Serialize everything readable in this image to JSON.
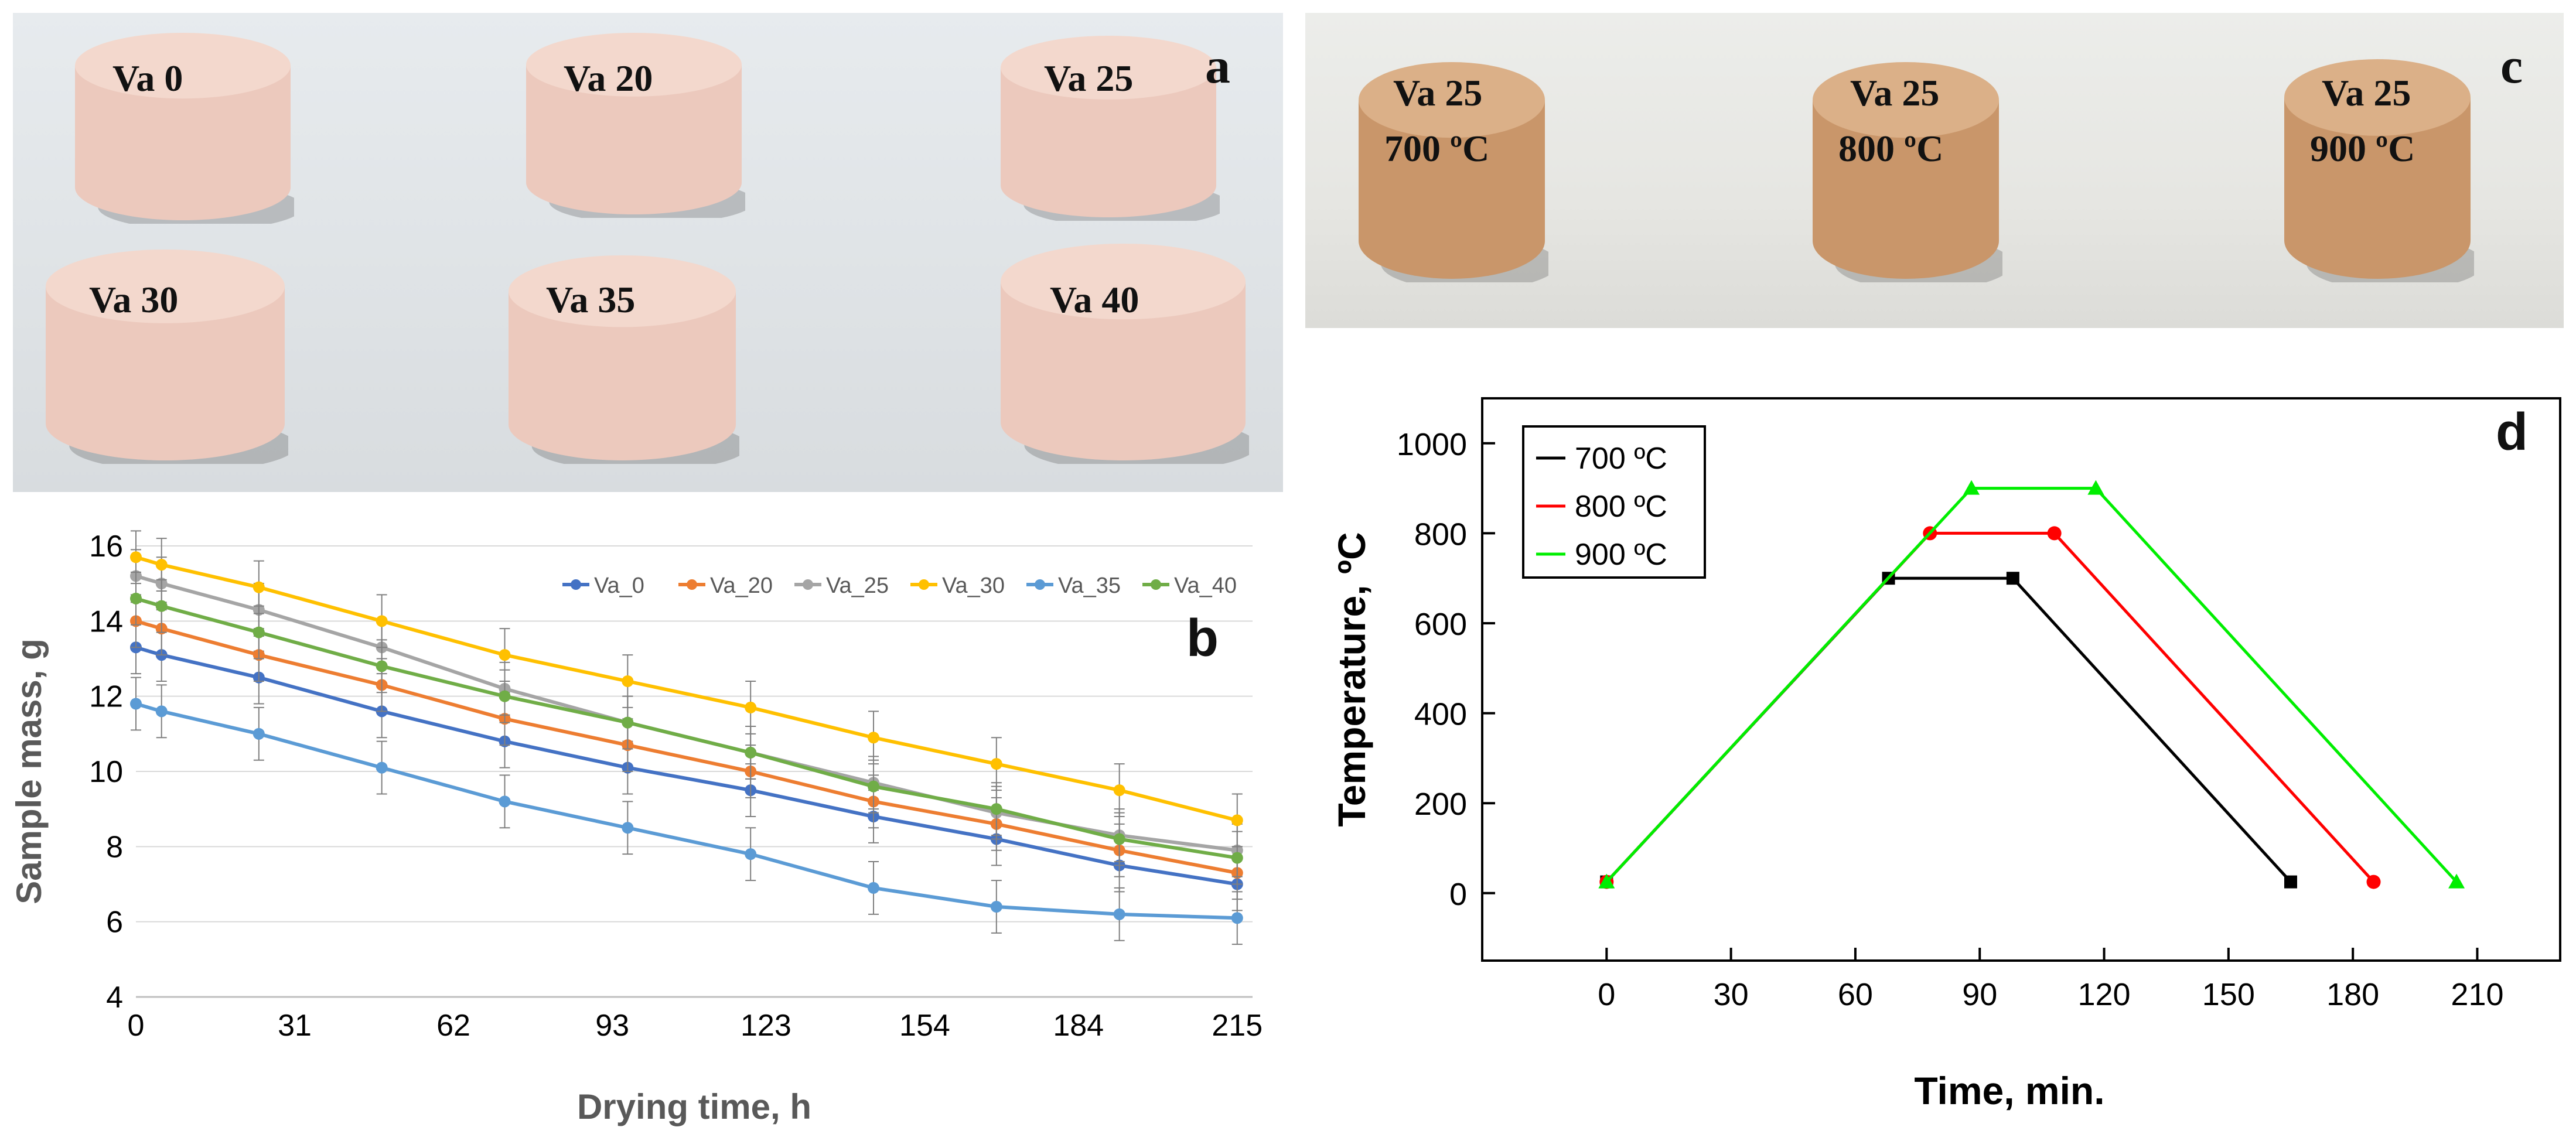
{
  "panel_letters": {
    "a": "a",
    "b": "b",
    "c": "c",
    "d": "d"
  },
  "photo_a": {
    "labels": [
      "Va 0",
      "Va 20",
      "Va 25",
      "Va 30",
      "Va 35",
      "Va 40"
    ],
    "colors": {
      "pellet": "#ecc9bd",
      "pellet_top": "#f3d8cd",
      "background": "#e2e6e9"
    }
  },
  "photo_c": {
    "labels": [
      {
        "line1": "Va 25",
        "line2": "700 ºC"
      },
      {
        "line1": "Va 25",
        "line2": "800 ºC"
      },
      {
        "line1": "Va  25",
        "line2": "900  ºC"
      }
    ],
    "colors": {
      "pellet": "#c9966a",
      "pellet_top": "#dbb088",
      "background": "#e8e8e4"
    }
  },
  "chart_data": [
    {
      "type": "line",
      "panel": "b",
      "title": "",
      "xlabel": "Drying time, h",
      "ylabel": "Sample mass, g",
      "xticks": [
        0,
        31,
        62,
        93,
        123,
        154,
        184,
        215
      ],
      "yticks": [
        4,
        6,
        8,
        10,
        12,
        14,
        16
      ],
      "xlim": [
        0,
        218
      ],
      "ylim": [
        4,
        16
      ],
      "grid": "horizontal",
      "legend_position": "top-right",
      "x": [
        0,
        5,
        24,
        48,
        72,
        96,
        120,
        144,
        168,
        192,
        215
      ],
      "series": [
        {
          "name": "Va_0",
          "color": "#4472c4",
          "values": [
            13.3,
            13.1,
            12.5,
            11.6,
            10.8,
            10.1,
            9.5,
            8.8,
            8.2,
            7.5,
            7.0
          ]
        },
        {
          "name": "Va_20",
          "color": "#ed7d31",
          "values": [
            14.0,
            13.8,
            13.1,
            12.3,
            11.4,
            10.7,
            10.0,
            9.2,
            8.6,
            7.9,
            7.3
          ]
        },
        {
          "name": "Va_25",
          "color": "#a5a5a5",
          "values": [
            15.2,
            15.0,
            14.3,
            13.3,
            12.2,
            11.3,
            10.5,
            9.7,
            8.9,
            8.3,
            7.9
          ]
        },
        {
          "name": "Va_30",
          "color": "#ffc000",
          "values": [
            15.7,
            15.5,
            14.9,
            14.0,
            13.1,
            12.4,
            11.7,
            10.9,
            10.2,
            9.5,
            8.7
          ]
        },
        {
          "name": "Va_35",
          "color": "#5b9bd5",
          "values": [
            11.8,
            11.6,
            11.0,
            10.1,
            9.2,
            8.5,
            7.8,
            6.9,
            6.4,
            6.2,
            6.1
          ]
        },
        {
          "name": "Va_40",
          "color": "#70ad47",
          "values": [
            14.6,
            14.4,
            13.7,
            12.8,
            12.0,
            11.3,
            10.5,
            9.6,
            9.0,
            8.2,
            7.7
          ]
        }
      ],
      "error_bar": 0.7
    },
    {
      "type": "line",
      "panel": "d",
      "title": "",
      "xlabel": "Time, min.",
      "ylabel": "Temperature, ºC",
      "xticks": [
        0,
        30,
        60,
        90,
        120,
        150,
        180,
        210
      ],
      "yticks": [
        0,
        200,
        400,
        600,
        800,
        1000
      ],
      "xlim": [
        -30,
        230
      ],
      "ylim": [
        -150,
        1100
      ],
      "legend_position": "top-left",
      "series": [
        {
          "name": "700 ºC",
          "color": "#000000",
          "marker": "square",
          "x": [
            0,
            68,
            98,
            165
          ],
          "y": [
            25,
            700,
            700,
            25
          ]
        },
        {
          "name": "800 ºC",
          "color": "#ff0000",
          "marker": "circle",
          "x": [
            0,
            78,
            108,
            185
          ],
          "y": [
            25,
            800,
            800,
            25
          ]
        },
        {
          "name": "900 ºC",
          "color": "#00ee00",
          "marker": "triangle",
          "x": [
            0,
            88,
            118,
            205
          ],
          "y": [
            25,
            900,
            900,
            25
          ]
        }
      ]
    }
  ]
}
